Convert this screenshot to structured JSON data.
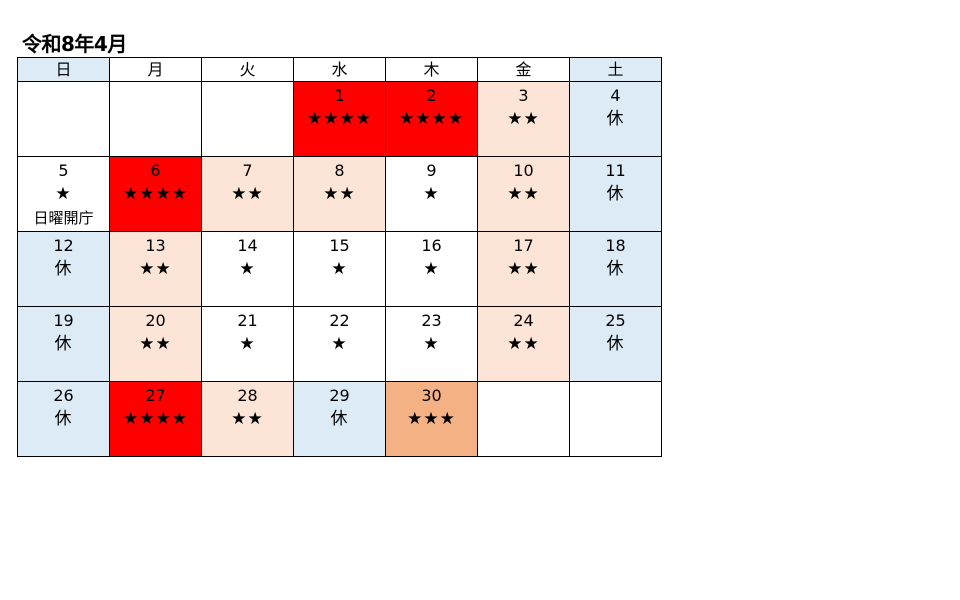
{
  "title": "令和8年4月",
  "colors": {
    "red": "#ff0000",
    "peach": "#fce4d6",
    "blue": "#ddebf7",
    "orange": "#f4b183",
    "white": "#ffffff"
  },
  "weekdays": [
    {
      "label": "日",
      "color": "blue"
    },
    {
      "label": "月",
      "color": "white"
    },
    {
      "label": "火",
      "color": "white"
    },
    {
      "label": "水",
      "color": "white"
    },
    {
      "label": "木",
      "color": "white"
    },
    {
      "label": "金",
      "color": "white"
    },
    {
      "label": "土",
      "color": "blue"
    }
  ],
  "weeks": [
    [
      {
        "day": "",
        "stars": "",
        "note": "",
        "color": "white"
      },
      {
        "day": "",
        "stars": "",
        "note": "",
        "color": "white"
      },
      {
        "day": "",
        "stars": "",
        "note": "",
        "color": "white"
      },
      {
        "day": "1",
        "stars": "★★★★",
        "note": "",
        "color": "red"
      },
      {
        "day": "2",
        "stars": "★★★★",
        "note": "",
        "color": "red"
      },
      {
        "day": "3",
        "stars": "★★",
        "note": "",
        "color": "peach"
      },
      {
        "day": "4",
        "stars": "休",
        "note": "",
        "color": "blue"
      }
    ],
    [
      {
        "day": "5",
        "stars": "★",
        "note": "日曜開庁",
        "color": "white"
      },
      {
        "day": "6",
        "stars": "★★★★",
        "note": "",
        "color": "red"
      },
      {
        "day": "7",
        "stars": "★★",
        "note": "",
        "color": "peach"
      },
      {
        "day": "8",
        "stars": "★★",
        "note": "",
        "color": "peach"
      },
      {
        "day": "9",
        "stars": "★",
        "note": "",
        "color": "white"
      },
      {
        "day": "10",
        "stars": "★★",
        "note": "",
        "color": "peach"
      },
      {
        "day": "11",
        "stars": "休",
        "note": "",
        "color": "blue"
      }
    ],
    [
      {
        "day": "12",
        "stars": "休",
        "note": "",
        "color": "blue"
      },
      {
        "day": "13",
        "stars": "★★",
        "note": "",
        "color": "peach"
      },
      {
        "day": "14",
        "stars": "★",
        "note": "",
        "color": "white"
      },
      {
        "day": "15",
        "stars": "★",
        "note": "",
        "color": "white"
      },
      {
        "day": "16",
        "stars": "★",
        "note": "",
        "color": "white"
      },
      {
        "day": "17",
        "stars": "★★",
        "note": "",
        "color": "peach"
      },
      {
        "day": "18",
        "stars": "休",
        "note": "",
        "color": "blue"
      }
    ],
    [
      {
        "day": "19",
        "stars": "休",
        "note": "",
        "color": "blue"
      },
      {
        "day": "20",
        "stars": "★★",
        "note": "",
        "color": "peach"
      },
      {
        "day": "21",
        "stars": "★",
        "note": "",
        "color": "white"
      },
      {
        "day": "22",
        "stars": "★",
        "note": "",
        "color": "white"
      },
      {
        "day": "23",
        "stars": "★",
        "note": "",
        "color": "white"
      },
      {
        "day": "24",
        "stars": "★★",
        "note": "",
        "color": "peach"
      },
      {
        "day": "25",
        "stars": "休",
        "note": "",
        "color": "blue"
      }
    ],
    [
      {
        "day": "26",
        "stars": "休",
        "note": "",
        "color": "blue"
      },
      {
        "day": "27",
        "stars": "★★★★",
        "note": "",
        "color": "red"
      },
      {
        "day": "28",
        "stars": "★★",
        "note": "",
        "color": "peach"
      },
      {
        "day": "29",
        "stars": "休",
        "note": "",
        "color": "blue"
      },
      {
        "day": "30",
        "stars": "★★★",
        "note": "",
        "color": "orange"
      },
      {
        "day": "",
        "stars": "",
        "note": "",
        "color": "white"
      },
      {
        "day": "",
        "stars": "",
        "note": "",
        "color": "white"
      }
    ]
  ]
}
